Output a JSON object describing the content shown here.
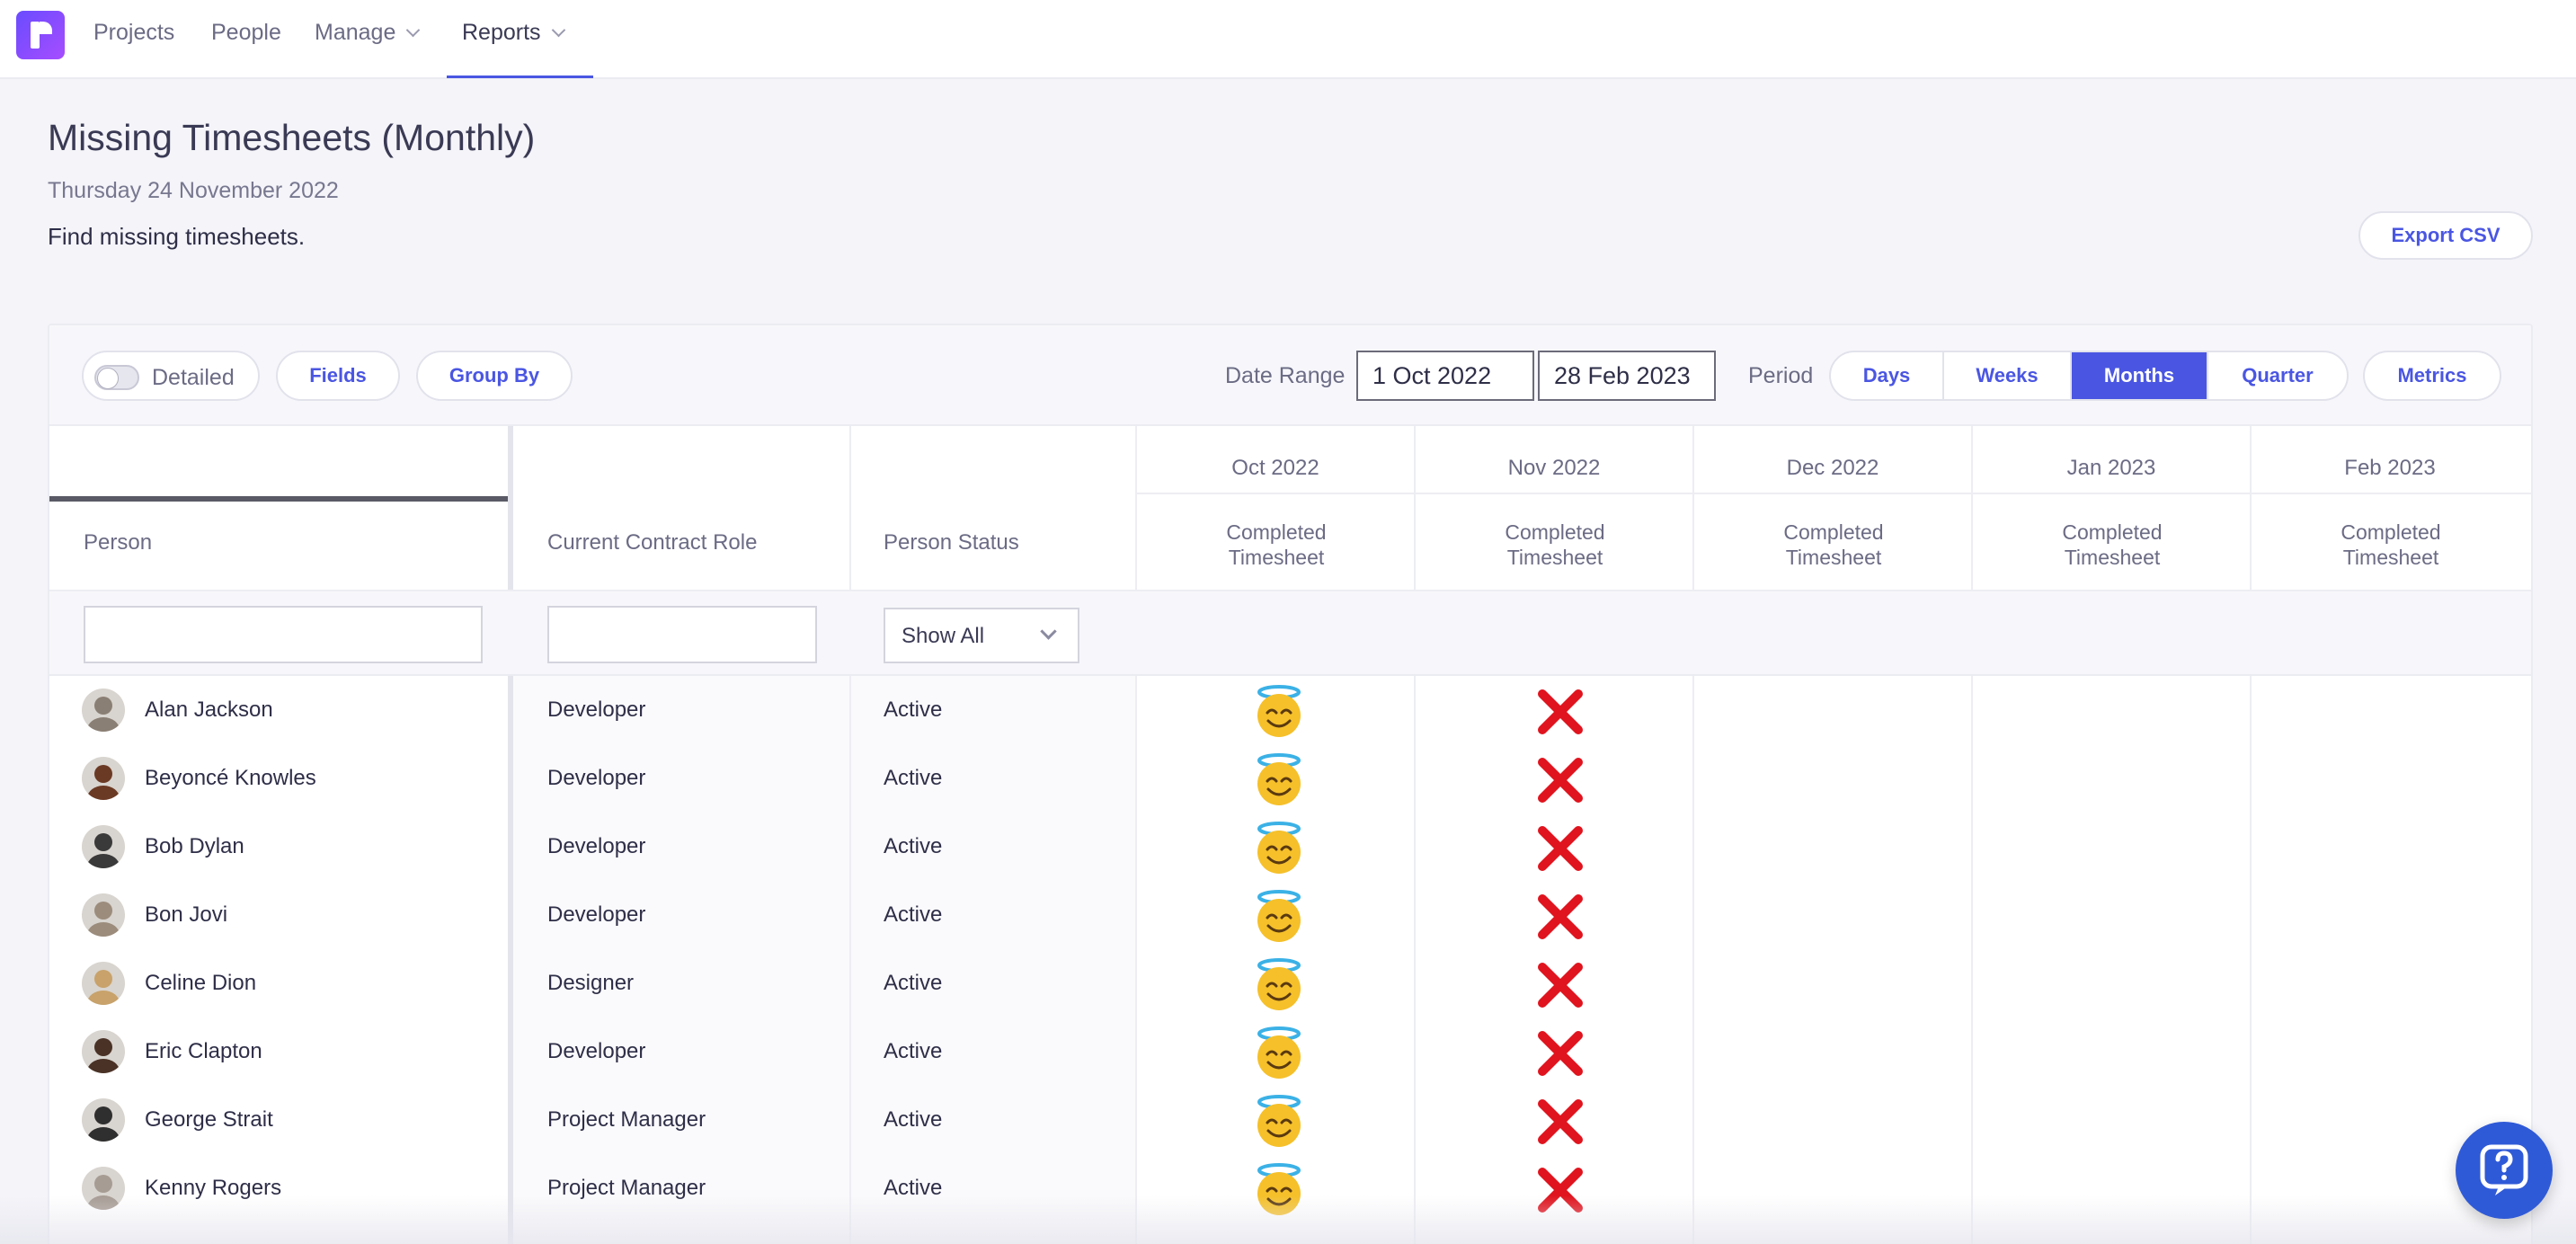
{
  "nav": {
    "items": [
      {
        "label": "Projects"
      },
      {
        "label": "People"
      },
      {
        "label": "Manage"
      },
      {
        "label": "Reports"
      }
    ]
  },
  "header": {
    "title": "Missing Timesheets (Monthly)",
    "date": "Thursday 24 November 2022",
    "description": "Find missing timesheets.",
    "export_label": "Export CSV"
  },
  "toolbar": {
    "detailed_label": "Detailed",
    "fields_label": "Fields",
    "group_by_label": "Group By",
    "date_range_label": "Date Range",
    "date_from": "1 Oct 2022",
    "date_to": "28 Feb 2023",
    "period_label": "Period",
    "period_options": [
      "Days",
      "Weeks",
      "Months",
      "Quarter"
    ],
    "period_selected": "Months",
    "metrics_label": "Metrics"
  },
  "table": {
    "columns": {
      "person": "Person",
      "role": "Current Contract Role",
      "status": "Person Status"
    },
    "months": [
      "Oct 2022",
      "Nov 2022",
      "Dec 2022",
      "Jan 2023",
      "Feb 2023"
    ],
    "month_sub": "Completed Timesheet",
    "status_filter": "Show All",
    "rows": [
      {
        "name": "Alan Jackson",
        "role": "Developer",
        "status": "Active"
      },
      {
        "name": "Beyoncé Knowles",
        "role": "Developer",
        "status": "Active"
      },
      {
        "name": "Bob Dylan",
        "role": "Developer",
        "status": "Active"
      },
      {
        "name": "Bon Jovi",
        "role": "Developer",
        "status": "Active"
      },
      {
        "name": "Celine Dion",
        "role": "Designer",
        "status": "Active"
      },
      {
        "name": "Eric Clapton",
        "role": "Developer",
        "status": "Active"
      },
      {
        "name": "George Strait",
        "role": "Project Manager",
        "status": "Active"
      },
      {
        "name": "Kenny Rogers",
        "role": "Project Manager",
        "status": "Active"
      }
    ]
  },
  "colors": {
    "accent": "#4a56e2",
    "missing": "#e0141e",
    "complete": "#f5c02a"
  }
}
